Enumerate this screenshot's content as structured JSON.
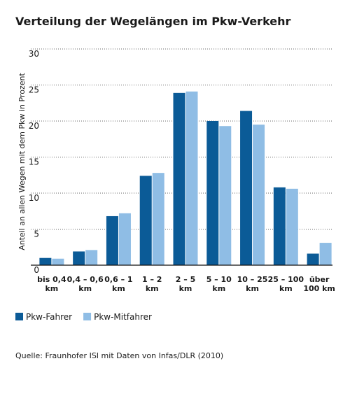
{
  "chart_data": {
    "type": "bar",
    "title": "Verteilung der Wegelängen im Pkw-Verkehr",
    "y_label": "Anteil an allen Wegen mit dem Pkw in Prozent",
    "categories": [
      "bis 0,4\nkm",
      "0,4 – 0,6\nkm",
      "0,6 – 1\nkm",
      "1 – 2\nkm",
      "2 – 5\nkm",
      "5 – 10\nkm",
      "10 – 25\nkm",
      "25 – 100\nkm",
      "über\n100 km"
    ],
    "series": [
      {
        "name": "Pkw-Fahrer",
        "color": "#0b5b97",
        "values": [
          1.0,
          1.9,
          6.8,
          12.4,
          23.9,
          20.0,
          21.4,
          10.8,
          1.6
        ]
      },
      {
        "name": "Pkw-Mitfahrer",
        "color": "#8fbde5",
        "values": [
          0.9,
          2.1,
          7.2,
          12.8,
          24.1,
          19.3,
          19.5,
          10.6,
          3.1
        ]
      }
    ],
    "ylim": [
      0,
      30
    ],
    "yticks": [
      0,
      5,
      10,
      15,
      20,
      25,
      30
    ],
    "grid": true,
    "source": "Quelle: Fraunhofer ISI mit Daten von Infas/DLR (2010)"
  }
}
